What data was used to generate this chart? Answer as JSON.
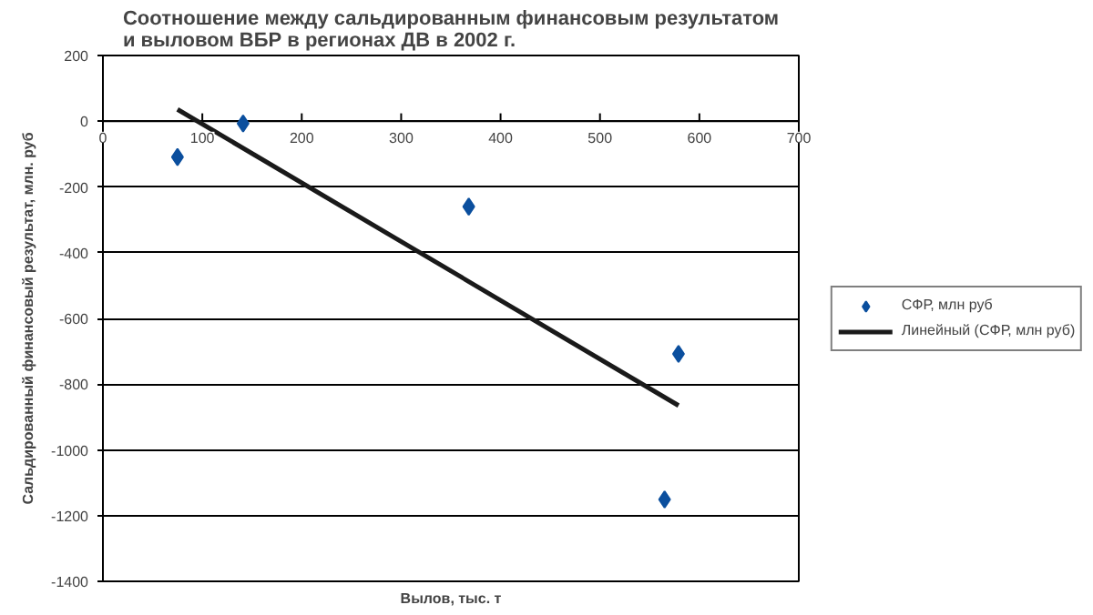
{
  "chart_data": {
    "type": "scatter",
    "title": "Соотношение между сальдированным финансовым результатом\nи выловом ВБР в регионах ДВ в 2002 г.",
    "xlabel": "Вылов, тыс. т",
    "ylabel": "Сальдированный финансовый результат, млн. руб",
    "series": [
      {
        "name": "СФР, млн руб",
        "color": "#0b4f9e",
        "marker": "diamond",
        "x": [
          75,
          141,
          368,
          565,
          579
        ],
        "values": [
          -109,
          -7,
          -260,
          -1151,
          -708
        ]
      },
      {
        "name": "Линейный (СФР, млн руб)",
        "type": "line",
        "color": "#1a1a1a",
        "marker": "none",
        "line_style": "solid",
        "x": [
          75,
          579
        ],
        "values": [
          36,
          -865
        ]
      }
    ],
    "xlim": [
      0,
      700
    ],
    "xticks": [
      0,
      100,
      200,
      300,
      400,
      500,
      600,
      700
    ],
    "ylim": [
      -1400,
      200
    ],
    "yticks": [
      -1400,
      -1200,
      -1000,
      -800,
      -600,
      -400,
      -200,
      0,
      200
    ],
    "grid": "y",
    "legend": "right"
  }
}
